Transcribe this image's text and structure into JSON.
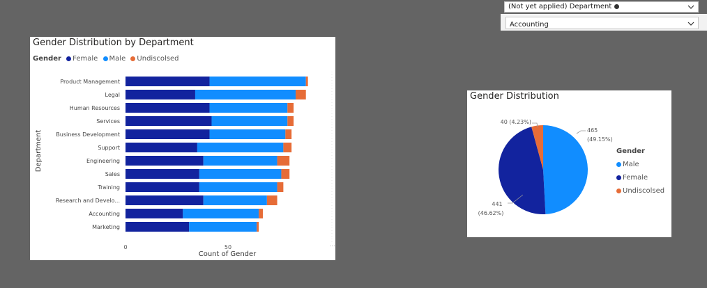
{
  "slicer": {
    "header_label": "(Not yet applied) Department",
    "selected_value": "Accounting"
  },
  "colors": {
    "female": "#12239E",
    "male": "#118DFF",
    "undisclosed": "#E66C37",
    "background": "#646464"
  },
  "bar_chart": {
    "title": "Gender Distribution by Department",
    "legend_title": "Gender",
    "legend": [
      "Female",
      "Male",
      "Undiscolsed"
    ]
  },
  "pie_chart": {
    "title": "Gender Distribution",
    "legend_title": "Gender",
    "legend": [
      "Male",
      "Female",
      "Undiscolsed"
    ],
    "labels": {
      "male_value": "465",
      "male_pct": "(49.15%)",
      "female_value": "441",
      "female_pct": "(46.62%)",
      "undisclosed": "40 (4.23%)"
    }
  },
  "chart_data": [
    {
      "type": "bar",
      "orientation": "horizontal-stacked",
      "title": "Gender Distribution by Department",
      "xlabel": "Count of Gender",
      "ylabel": "Department",
      "xlim": [
        0,
        90
      ],
      "xticks": [
        "0",
        "50"
      ],
      "categories": [
        "Product Management",
        "Legal",
        "Human Resources",
        "Services",
        "Business Development",
        "Support",
        "Engineering",
        "Sales",
        "Training",
        "Research and Develo...",
        "Accounting",
        "Marketing"
      ],
      "series": [
        {
          "name": "Female",
          "values": [
            41,
            34,
            41,
            42,
            41,
            35,
            38,
            36,
            36,
            38,
            28,
            31
          ]
        },
        {
          "name": "Male",
          "values": [
            47,
            49,
            38,
            37,
            37,
            42,
            36,
            40,
            38,
            31,
            37,
            33
          ]
        },
        {
          "name": "Undiscolsed",
          "values": [
            1,
            5,
            3,
            3,
            3,
            4,
            6,
            4,
            3,
            5,
            2,
            1
          ]
        }
      ],
      "legend_position": "top-left",
      "grid": false
    },
    {
      "type": "pie",
      "title": "Gender Distribution",
      "categories": [
        "Male",
        "Female",
        "Undiscolsed"
      ],
      "values": [
        465,
        441,
        40
      ],
      "percentages": [
        49.15,
        46.62,
        4.23
      ],
      "legend_position": "right"
    }
  ]
}
